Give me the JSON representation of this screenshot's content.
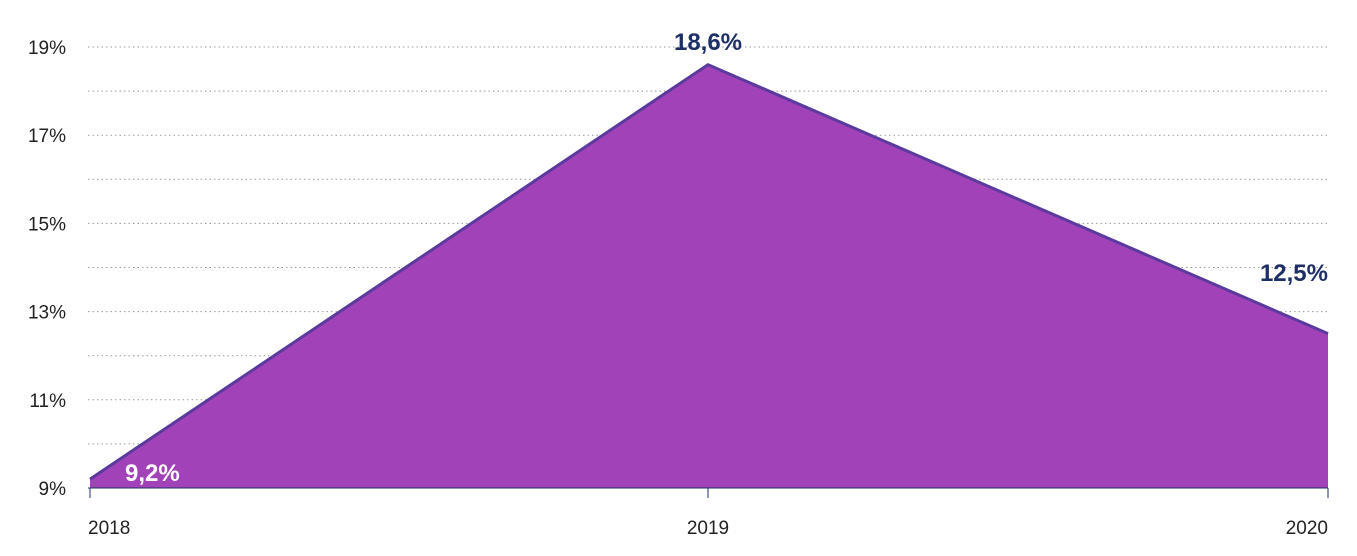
{
  "chart_data": {
    "type": "area",
    "title": "",
    "xlabel": "",
    "ylabel": "",
    "categories": [
      "2018",
      "2019",
      "2020"
    ],
    "series": [
      {
        "values": [
          9.2,
          18.6,
          12.5
        ]
      }
    ],
    "data_labels": [
      "9,2%",
      "18,6%",
      "12,5%"
    ],
    "ylim": [
      9,
      19
    ],
    "y_ticks": [
      {
        "value": 9,
        "label": "9%"
      },
      {
        "value": 11,
        "label": "11%"
      },
      {
        "value": 13,
        "label": "13%"
      },
      {
        "value": 15,
        "label": "15%"
      },
      {
        "value": 17,
        "label": "17%"
      },
      {
        "value": 19,
        "label": "19%"
      }
    ],
    "y_minor_gridlines": [
      10,
      12,
      14,
      16,
      18
    ],
    "grid": true,
    "legend": "none",
    "colors": {
      "fill": "#a142b8",
      "line": "#5b3a9e",
      "label_dark": "#1d2f66",
      "label_light": "#ffffff",
      "grid": "#9a9a9a",
      "axis": "#1d2f66"
    }
  }
}
